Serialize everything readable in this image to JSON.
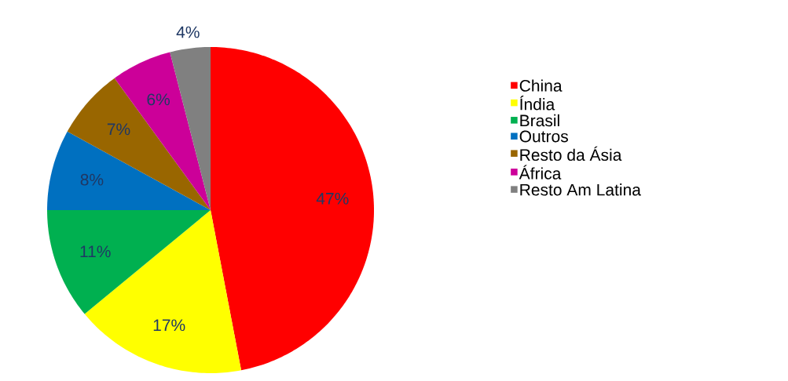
{
  "chart_data": {
    "type": "pie",
    "categories": [
      "China",
      "Índia",
      "Brasil",
      "Outros",
      "Resto da Ásia",
      "África",
      "Resto Am Latina"
    ],
    "values": [
      47,
      17,
      11,
      8,
      7,
      6,
      4
    ],
    "value_labels": [
      "47%",
      "17%",
      "11%",
      "8%",
      "7%",
      "6%",
      "4%"
    ],
    "colors": [
      "#ff0000",
      "#ffff00",
      "#00b050",
      "#0070c0",
      "#996600",
      "#cc0099",
      "#808080"
    ],
    "legend": "right"
  }
}
